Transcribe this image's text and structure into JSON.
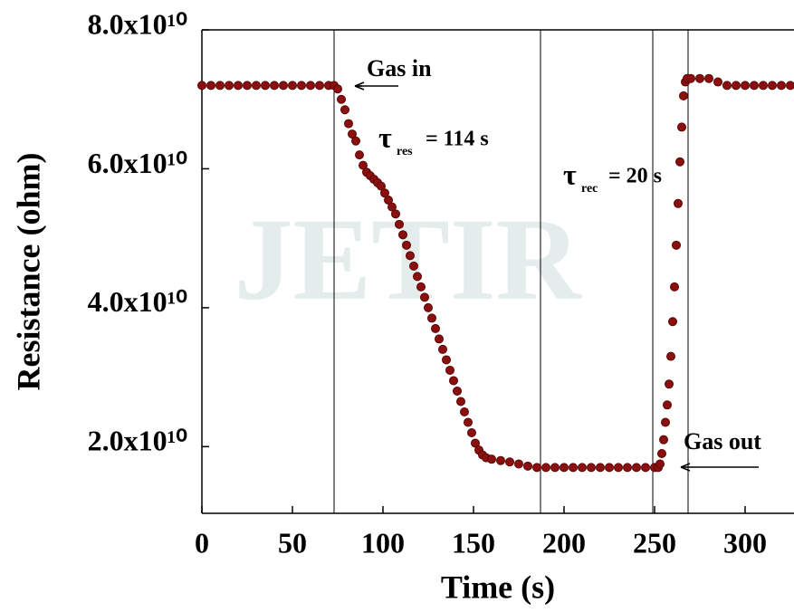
{
  "chart_data": {
    "type": "scatter",
    "watermark": "JETIR",
    "xlabel": "Time (s)",
    "ylabel": "Resistance (ohm)",
    "xlim": [
      0,
      327
    ],
    "xticks": [
      0,
      50,
      100,
      150,
      200,
      250,
      300
    ],
    "ylim": [
      10400000000.0,
      80000000000.0
    ],
    "yticks": [
      {
        "value": 20000000000.0,
        "label": "2.0x10¹⁰"
      },
      {
        "value": 40000000000.0,
        "label": "4.0x10¹⁰"
      },
      {
        "value": 60000000000.0,
        "label": "6.0x10¹⁰"
      },
      {
        "value": 80000000000.0,
        "label": "8.0x10¹⁰"
      }
    ],
    "vlines": [
      73,
      187,
      249,
      268.5
    ],
    "annotations": [
      {
        "text": "Gas in"
      },
      {
        "text": "τ",
        "sub": "res",
        "rest": "= 114 s"
      },
      {
        "text": "τ",
        "sub": "rec",
        "rest": "= 20 s"
      },
      {
        "text": "Gas out"
      }
    ],
    "color": "#8b0f0f",
    "x": [
      0,
      5,
      10,
      15,
      20,
      25,
      30,
      35,
      40,
      45,
      50,
      55,
      60,
      65,
      70,
      73,
      75,
      77,
      79,
      81,
      83,
      85,
      87,
      89,
      91,
      93,
      95,
      97,
      99,
      101,
      103,
      105,
      107,
      109,
      111,
      113,
      115,
      117,
      119,
      121,
      123,
      125,
      127,
      129,
      131,
      133,
      135,
      137,
      139,
      141,
      143,
      145,
      147,
      149,
      151,
      153,
      155,
      157,
      160,
      165,
      170,
      175,
      180,
      185,
      190,
      195,
      200,
      205,
      210,
      215,
      220,
      225,
      230,
      235,
      240,
      245,
      250,
      252,
      253,
      254,
      255,
      256,
      257,
      258,
      259,
      260,
      261,
      262,
      263,
      264,
      265,
      266,
      267,
      268,
      270,
      275,
      280,
      285,
      290,
      295,
      300,
      305,
      310,
      315,
      320,
      325
    ],
    "values": [
      72000000000.0,
      72000000000.0,
      72000000000.0,
      72000000000.0,
      72000000000.0,
      72000000000.0,
      72000000000.0,
      72000000000.0,
      72000000000.0,
      72000000000.0,
      72000000000.0,
      72000000000.0,
      72000000000.0,
      72000000000.0,
      72000000000.0,
      72000000000.0,
      71500000000.0,
      70000000000.0,
      68500000000.0,
      66500000000.0,
      65000000000.0,
      64000000000.0,
      62000000000.0,
      60500000000.0,
      59500000000.0,
      59000000000.0,
      58500000000.0,
      58000000000.0,
      57500000000.0,
      56500000000.0,
      55500000000.0,
      54500000000.0,
      53500000000.0,
      52000000000.0,
      50500000000.0,
      49000000000.0,
      47500000000.0,
      46000000000.0,
      44500000000.0,
      43000000000.0,
      41500000000.0,
      40000000000.0,
      38500000000.0,
      37000000000.0,
      35500000000.0,
      34000000000.0,
      32500000000.0,
      31000000000.0,
      29500000000.0,
      28000000000.0,
      26500000000.0,
      25000000000.0,
      23500000000.0,
      22000000000.0,
      20500000000.0,
      19500000000.0,
      18800000000.0,
      18400000000.0,
      18200000000.0,
      18000000000.0,
      17800000000.0,
      17500000000.0,
      17200000000.0,
      17000000000.0,
      17000000000.0,
      17000000000.0,
      17000000000.0,
      17000000000.0,
      17000000000.0,
      17000000000.0,
      17000000000.0,
      17000000000.0,
      17000000000.0,
      17000000000.0,
      17000000000.0,
      17000000000.0,
      17000000000.0,
      17000000000.0,
      17500000000.0,
      19000000000.0,
      21000000000.0,
      23500000000.0,
      26000000000.0,
      29000000000.0,
      33000000000.0,
      38000000000.0,
      43000000000.0,
      49000000000.0,
      55000000000.0,
      61000000000.0,
      66000000000.0,
      70500000000.0,
      72500000000.0,
      73000000000.0,
      73000000000.0,
      73000000000.0,
      73000000000.0,
      72500000000.0,
      72000000000.0,
      72000000000.0,
      72000000000.0,
      72000000000.0,
      72000000000.0,
      72000000000.0,
      72000000000.0,
      72000000000.0
    ]
  }
}
